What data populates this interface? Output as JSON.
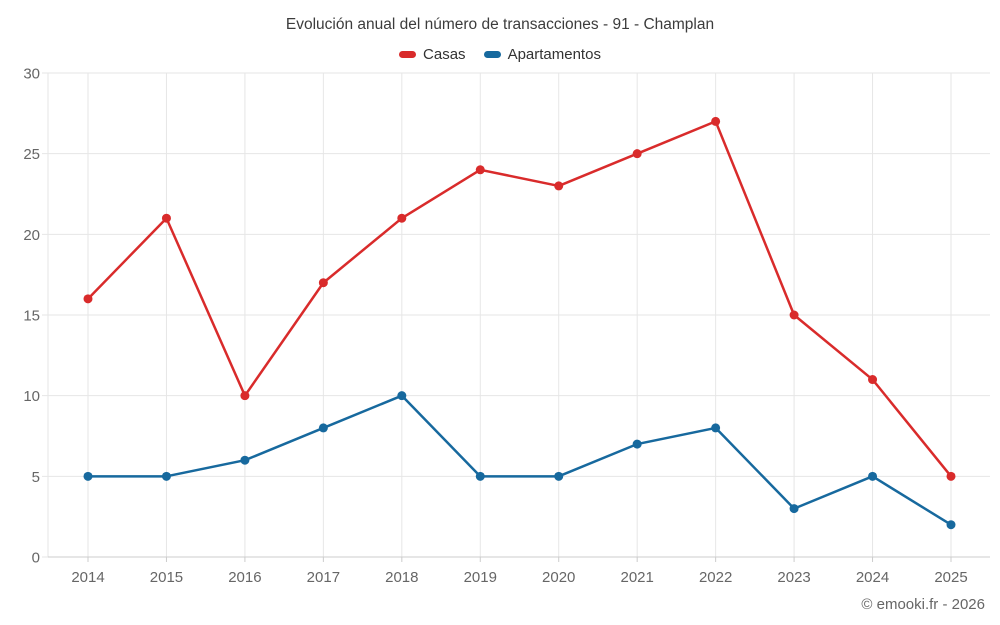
{
  "header": {
    "title": "Evolución anual del número de transacciones - 91 - Champlan"
  },
  "legend": {
    "items": [
      {
        "label": "Casas",
        "color": "#d92b2b"
      },
      {
        "label": "Apartamentos",
        "color": "#17699e"
      }
    ]
  },
  "watermark": "© emooki.fr - 2026",
  "chart_data": {
    "type": "line",
    "title": "Evolución anual del número de transacciones - 91 - Champlan",
    "categories": [
      "2014",
      "2015",
      "2016",
      "2017",
      "2018",
      "2019",
      "2020",
      "2021",
      "2022",
      "2023",
      "2024",
      "2025"
    ],
    "series": [
      {
        "name": "Casas",
        "color": "#d92b2b",
        "values": [
          16,
          21,
          10,
          17,
          21,
          24,
          23,
          25,
          27,
          15,
          11,
          5
        ]
      },
      {
        "name": "Apartamentos",
        "color": "#17699e",
        "values": [
          5,
          5,
          6,
          8,
          10,
          5,
          5,
          7,
          8,
          3,
          5,
          2
        ]
      }
    ],
    "xlabel": "",
    "ylabel": "",
    "ylim": [
      0,
      30
    ],
    "yticks": [
      0,
      5,
      10,
      15,
      20,
      25,
      30
    ],
    "grid": true,
    "legend_position": "top"
  },
  "style": {
    "grid_color": "#e6e6e6",
    "axis_line_color": "#cccccc",
    "tick_label_color": "#666666",
    "title_color": "#3c3c3c",
    "legend_text_color": "#333333"
  }
}
